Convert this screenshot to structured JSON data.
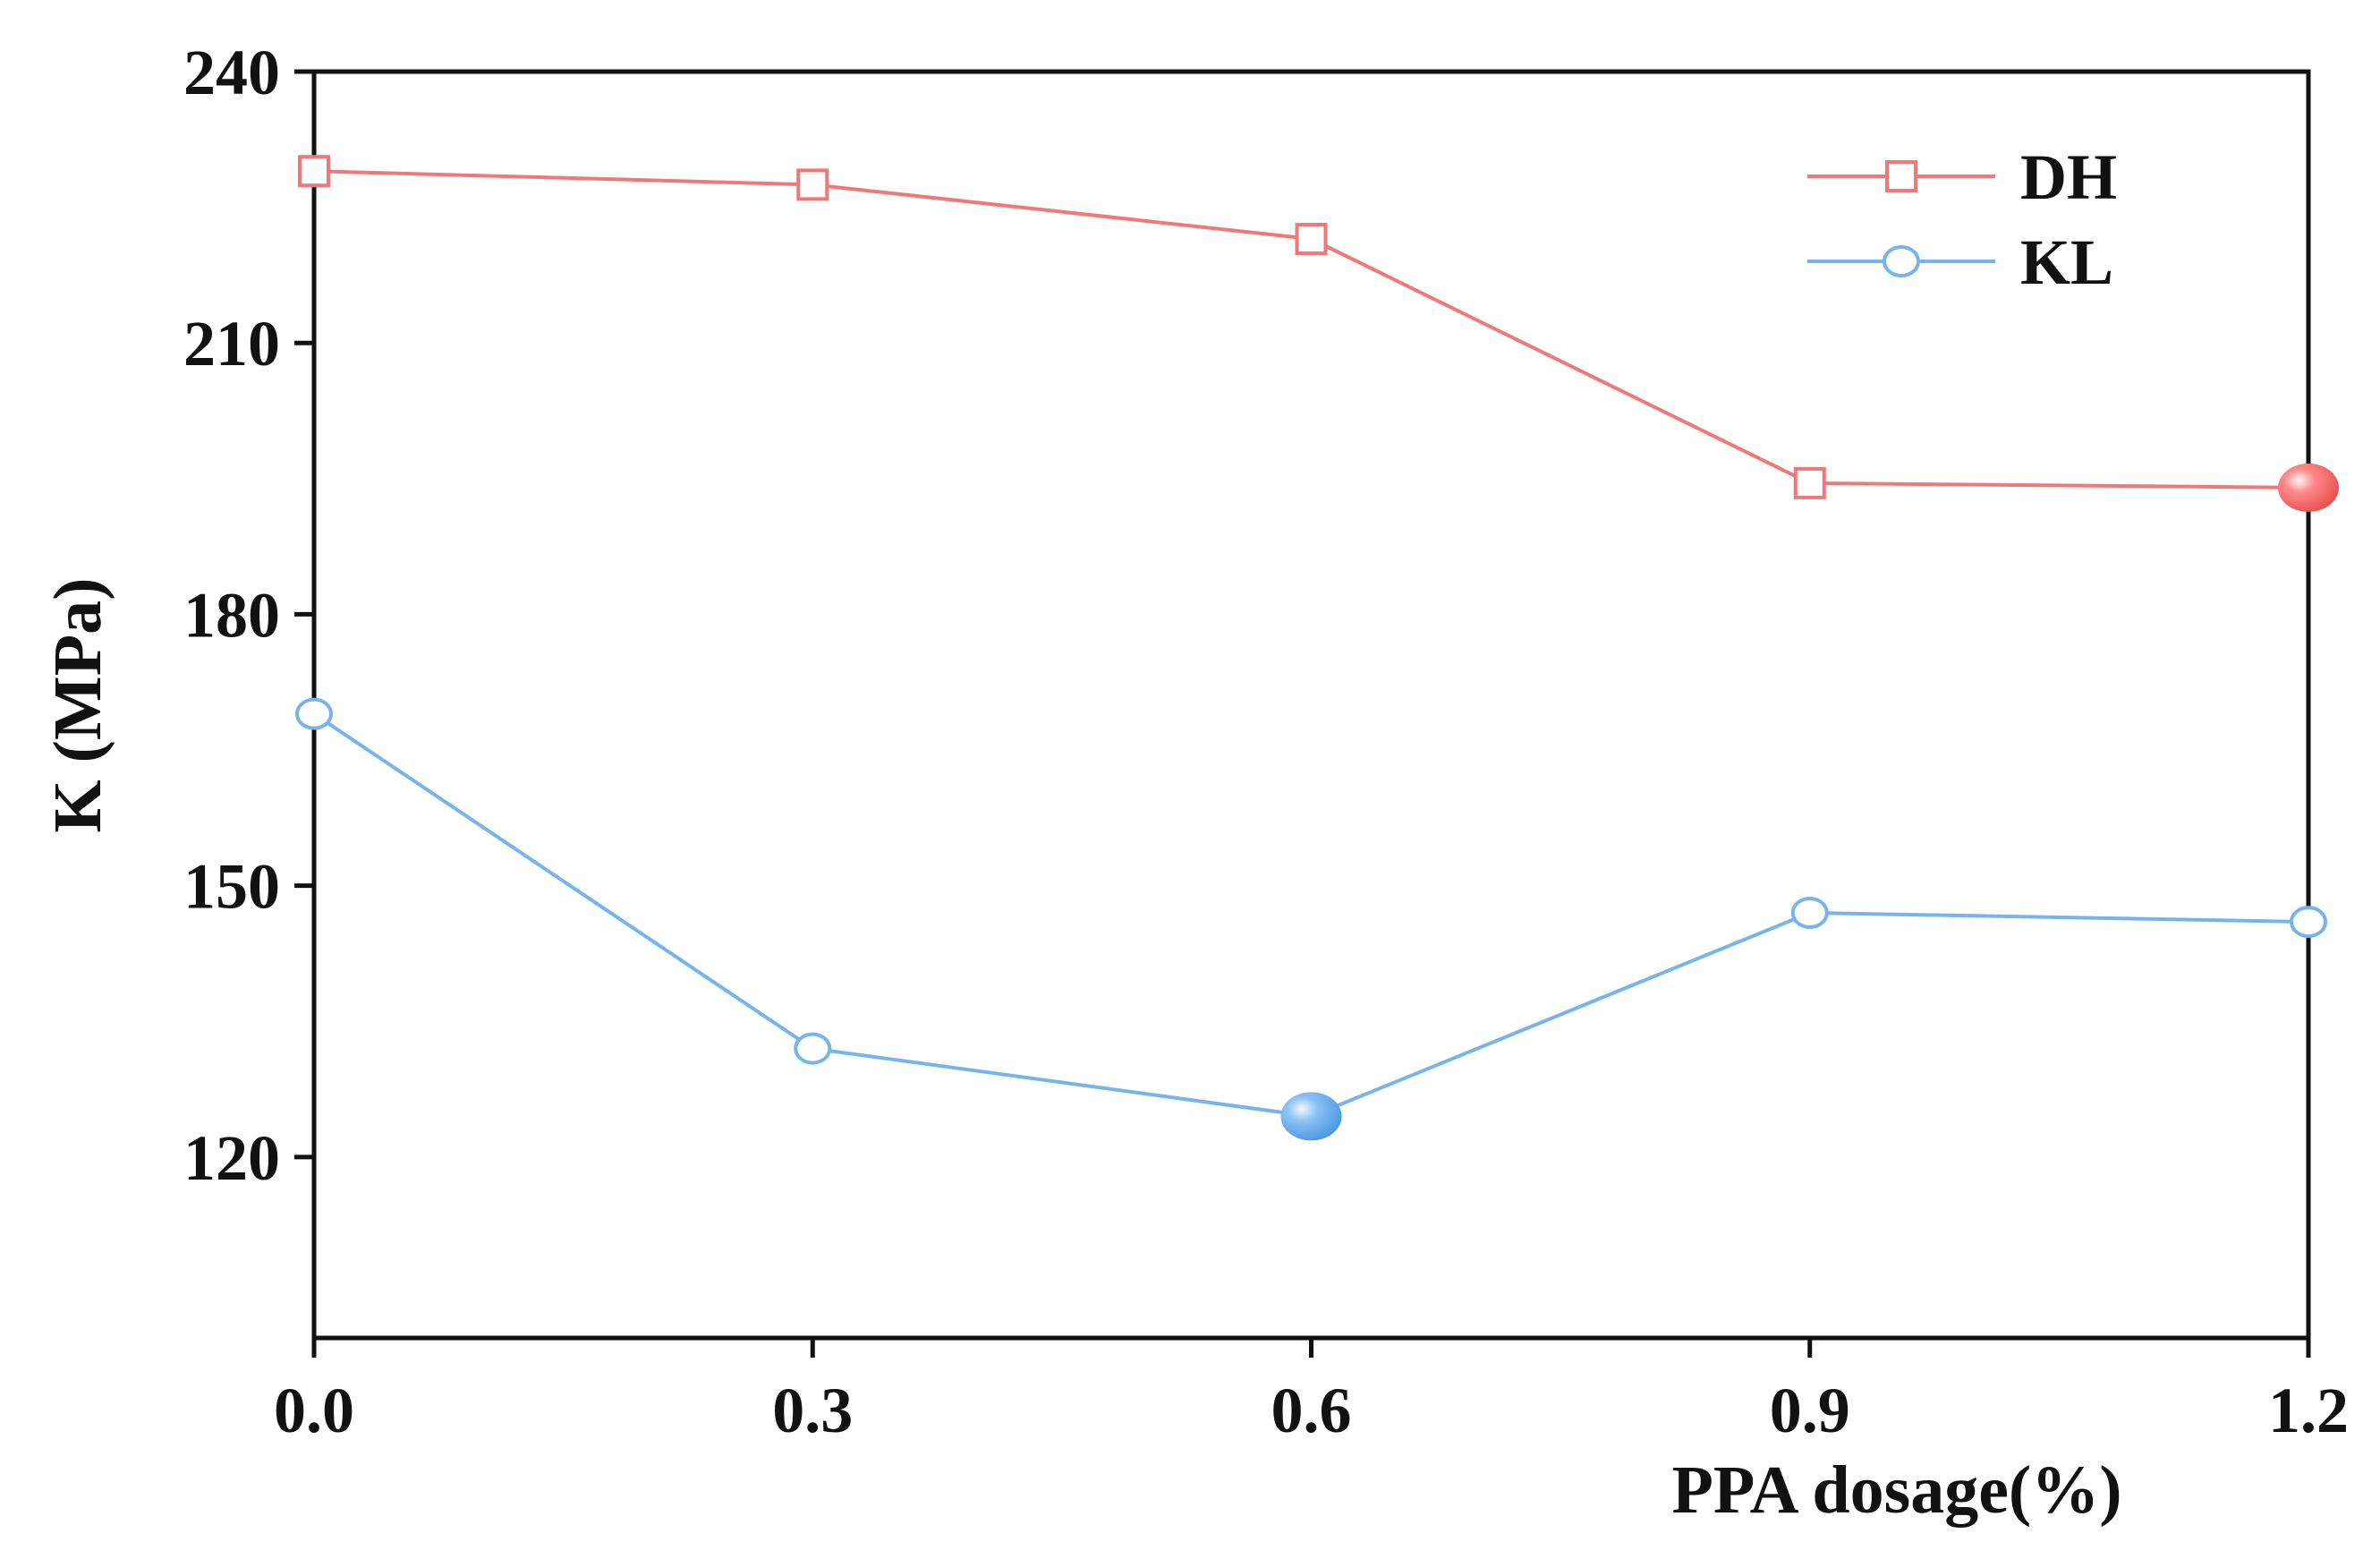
{
  "chart_data": {
    "type": "line",
    "title": "",
    "xlabel": "PPA dosage(%)",
    "ylabel": "K (MPa)",
    "x": [
      0.0,
      0.3,
      0.6,
      0.9,
      1.2
    ],
    "x_tick_labels": [
      "0.0",
      "0.3",
      "0.6",
      "0.9",
      "1.2"
    ],
    "y_ticks": [
      120,
      150,
      180,
      210,
      240
    ],
    "y_tick_labels": [
      "120",
      "150",
      "180",
      "210",
      "240"
    ],
    "xlim": [
      0.0,
      1.2
    ],
    "ylim": [
      100,
      240
    ],
    "grid": false,
    "legend_position": "top-right",
    "series": [
      {
        "name": "DH",
        "color": "#f07878",
        "marker": "square",
        "values": [
          229,
          227.5,
          221.5,
          194.5,
          194
        ],
        "highlight_index": 4
      },
      {
        "name": "KL",
        "color": "#78b4ec",
        "marker": "circle",
        "values": [
          169,
          132,
          124.5,
          147,
          146
        ],
        "highlight_index": 2
      }
    ]
  }
}
